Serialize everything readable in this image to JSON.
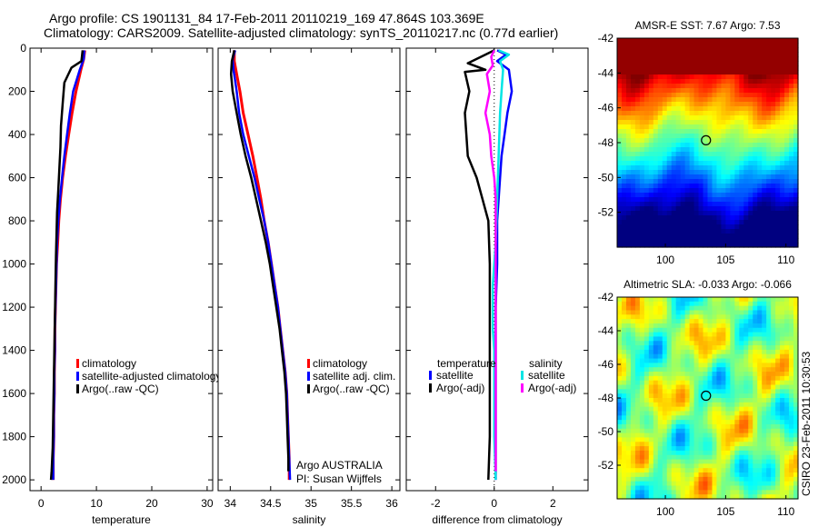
{
  "header": {
    "line1": "Argo profile: CS 1901131_84 17-Feb-2011 20110219_169 47.864S 103.369E",
    "line2": "Climatology: CARS2009. Satellite-adjusted climatology: synTS_20110217.nc (0.77d earlier)"
  },
  "colors": {
    "climatology": "#ff0000",
    "satellite": "#0000ff",
    "argo": "#000000",
    "sat_salinity": "#00e5e5",
    "argo_salinity_adj": "#ff00ff",
    "map_dot": "#000000"
  },
  "side_label": "CSIRO 23-Feb-2011 10:30:53",
  "chart_data": [
    {
      "type": "line",
      "id": "temperature",
      "xlabel": "temperature",
      "xlim": [
        -2,
        31
      ],
      "ylim": [
        0,
        2050
      ],
      "xticks": [
        "0",
        "10",
        "20",
        "30"
      ],
      "xtick_values": [
        0,
        10,
        20,
        30
      ],
      "yticks": [
        "0",
        "200",
        "400",
        "600",
        "800",
        "1000",
        "1200",
        "1400",
        "1600",
        "1800",
        "2000"
      ],
      "ytick_values": [
        0,
        200,
        400,
        600,
        800,
        1000,
        1200,
        1400,
        1600,
        1800,
        2000
      ],
      "y_reversed": true,
      "legend": [
        "climatology",
        "satellite-adjusted climatology",
        "Argo(..raw -QC)"
      ],
      "series": [
        {
          "name": "climatology",
          "color": "red",
          "width": 3,
          "points": [
            [
              7.9,
              10
            ],
            [
              7.7,
              50
            ],
            [
              7.2,
              100
            ],
            [
              6.3,
              200
            ],
            [
              5.6,
              300
            ],
            [
              5.0,
              400
            ],
            [
              4.4,
              500
            ],
            [
              3.9,
              600
            ],
            [
              3.5,
              700
            ],
            [
              3.2,
              800
            ],
            [
              3.0,
              900
            ],
            [
              2.8,
              1000
            ],
            [
              2.7,
              1100
            ],
            [
              2.6,
              1200
            ],
            [
              2.5,
              1300
            ],
            [
              2.5,
              1400
            ],
            [
              2.4,
              1500
            ],
            [
              2.4,
              1600
            ],
            [
              2.3,
              1700
            ],
            [
              2.3,
              1800
            ],
            [
              2.2,
              1900
            ],
            [
              2.2,
              2000
            ]
          ]
        },
        {
          "name": "satellite",
          "color": "blue",
          "width": 2.5,
          "points": [
            [
              7.8,
              10
            ],
            [
              7.7,
              50
            ],
            [
              7.0,
              100
            ],
            [
              5.8,
              200
            ],
            [
              5.2,
              300
            ],
            [
              4.7,
              400
            ],
            [
              4.2,
              500
            ],
            [
              3.8,
              600
            ],
            [
              3.4,
              700
            ],
            [
              3.1,
              800
            ],
            [
              2.9,
              900
            ],
            [
              2.8,
              1000
            ],
            [
              2.7,
              1100
            ],
            [
              2.6,
              1200
            ],
            [
              2.5,
              1300
            ],
            [
              2.5,
              1400
            ],
            [
              2.4,
              1500
            ],
            [
              2.4,
              1600
            ],
            [
              2.3,
              1700
            ],
            [
              2.3,
              1800
            ],
            [
              2.2,
              1900
            ],
            [
              2.2,
              2000
            ]
          ]
        },
        {
          "name": "argo",
          "color": "black",
          "width": 2.5,
          "points": [
            [
              7.5,
              10
            ],
            [
              7.3,
              60
            ],
            [
              5.5,
              90
            ],
            [
              4.2,
              160
            ],
            [
              3.9,
              260
            ],
            [
              3.6,
              360
            ],
            [
              3.5,
              460
            ],
            [
              3.3,
              560
            ],
            [
              3.1,
              660
            ],
            [
              2.9,
              760
            ],
            [
              2.8,
              860
            ],
            [
              2.7,
              960
            ],
            [
              2.6,
              1100
            ],
            [
              2.5,
              1250
            ],
            [
              2.4,
              1400
            ],
            [
              2.3,
              1550
            ],
            [
              2.2,
              1700
            ],
            [
              2.1,
              1850
            ],
            [
              1.9,
              1960
            ],
            [
              1.8,
              2000
            ]
          ]
        }
      ]
    },
    {
      "type": "line",
      "id": "salinity",
      "xlabel": "salinity",
      "xlim": [
        33.85,
        36.1
      ],
      "ylim": [
        0,
        2050
      ],
      "xticks": [
        "34",
        "34.5",
        "35",
        "35.5",
        "36"
      ],
      "xtick_values": [
        34,
        34.5,
        35,
        35.5,
        36
      ],
      "y_reversed": true,
      "legend": [
        "climatology",
        "satellite adj. clim.",
        "Argo(..raw -QC)"
      ],
      "annotation": [
        "Argo AUSTRALIA",
        "PI: Susan Wijffels"
      ],
      "series": [
        {
          "name": "climatology",
          "color": "red",
          "width": 3,
          "points": [
            [
              34.05,
              10
            ],
            [
              34.05,
              60
            ],
            [
              34.08,
              120
            ],
            [
              34.12,
              200
            ],
            [
              34.16,
              300
            ],
            [
              34.22,
              400
            ],
            [
              34.28,
              500
            ],
            [
              34.33,
              600
            ],
            [
              34.38,
              700
            ],
            [
              34.42,
              800
            ],
            [
              34.47,
              900
            ],
            [
              34.51,
              1000
            ],
            [
              34.55,
              1100
            ],
            [
              34.59,
              1200
            ],
            [
              34.62,
              1300
            ],
            [
              34.65,
              1400
            ],
            [
              34.68,
              1500
            ],
            [
              34.7,
              1600
            ],
            [
              34.71,
              1700
            ],
            [
              34.72,
              1800
            ],
            [
              34.73,
              1900
            ],
            [
              34.73,
              2000
            ]
          ]
        },
        {
          "name": "satellite",
          "color": "blue",
          "width": 2.5,
          "points": [
            [
              34.06,
              10
            ],
            [
              34.03,
              50
            ],
            [
              34.04,
              100
            ],
            [
              34.06,
              150
            ],
            [
              34.08,
              200
            ],
            [
              34.11,
              300
            ],
            [
              34.16,
              400
            ],
            [
              34.23,
              500
            ],
            [
              34.3,
              600
            ],
            [
              34.36,
              700
            ],
            [
              34.42,
              800
            ],
            [
              34.47,
              900
            ],
            [
              34.51,
              1000
            ],
            [
              34.55,
              1100
            ],
            [
              34.59,
              1200
            ],
            [
              34.62,
              1300
            ],
            [
              34.65,
              1400
            ],
            [
              34.68,
              1500
            ],
            [
              34.7,
              1600
            ],
            [
              34.71,
              1700
            ],
            [
              34.72,
              1800
            ],
            [
              34.73,
              1900
            ],
            [
              34.74,
              2000
            ]
          ]
        },
        {
          "name": "argo",
          "color": "black",
          "width": 2.5,
          "points": [
            [
              34.05,
              10
            ],
            [
              34.02,
              60
            ],
            [
              34.01,
              120
            ],
            [
              34.03,
              200
            ],
            [
              34.08,
              300
            ],
            [
              34.13,
              400
            ],
            [
              34.19,
              500
            ],
            [
              34.26,
              600
            ],
            [
              34.32,
              700
            ],
            [
              34.38,
              800
            ],
            [
              34.44,
              900
            ],
            [
              34.49,
              1000
            ],
            [
              34.53,
              1100
            ],
            [
              34.57,
              1200
            ],
            [
              34.61,
              1300
            ],
            [
              34.64,
              1400
            ],
            [
              34.67,
              1500
            ],
            [
              34.69,
              1600
            ],
            [
              34.7,
              1700
            ],
            [
              34.71,
              1800
            ],
            [
              34.72,
              1900
            ],
            [
              34.72,
              1960
            ]
          ]
        }
      ]
    },
    {
      "type": "line",
      "id": "difference",
      "xlabel": "difference from climatology",
      "xlim": [
        -3.0,
        3.2
      ],
      "ylim": [
        0,
        2050
      ],
      "xticks": [
        "-2",
        "0",
        "2"
      ],
      "xtick_values": [
        -2,
        0,
        2
      ],
      "y_reversed": true,
      "legend_headers": [
        "temperature",
        "salinity"
      ],
      "legend": [
        "satellite",
        "Argo(-adj)",
        "satellite",
        "Argo(-adj)"
      ],
      "series": [
        {
          "name": "temperature satellite",
          "color": "blue",
          "width": 2.5,
          "points": [
            [
              0.1,
              10
            ],
            [
              0.4,
              30
            ],
            [
              0.1,
              60
            ],
            [
              0.5,
              100
            ],
            [
              0.55,
              150
            ],
            [
              0.6,
              200
            ],
            [
              0.45,
              300
            ],
            [
              0.35,
              400
            ],
            [
              0.25,
              500
            ],
            [
              0.2,
              600
            ],
            [
              0.15,
              700
            ],
            [
              0.1,
              800
            ],
            [
              0.1,
              1000
            ],
            [
              0.05,
              1200
            ],
            [
              0.05,
              1400
            ],
            [
              0.05,
              1600
            ],
            [
              0.05,
              1800
            ],
            [
              0.05,
              2000
            ]
          ]
        },
        {
          "name": "temperature argo",
          "color": "black",
          "width": 2.5,
          "points": [
            [
              0,
              10
            ],
            [
              -0.9,
              70
            ],
            [
              -0.3,
              100
            ],
            [
              -1.0,
              110
            ],
            [
              -0.85,
              200
            ],
            [
              -1.0,
              300
            ],
            [
              -0.95,
              400
            ],
            [
              -0.9,
              500
            ],
            [
              -0.6,
              600
            ],
            [
              -0.4,
              700
            ],
            [
              -0.2,
              800
            ],
            [
              -0.15,
              1000
            ],
            [
              -0.15,
              1200
            ],
            [
              -0.15,
              1400
            ],
            [
              -0.15,
              1600
            ],
            [
              -0.15,
              1800
            ],
            [
              -0.2,
              2000
            ]
          ]
        },
        {
          "name": "salinity satellite",
          "color": "cyan",
          "width": 2.5,
          "points": [
            [
              0.15,
              10
            ],
            [
              0.5,
              30
            ],
            [
              0.2,
              60
            ],
            [
              0.3,
              100
            ],
            [
              0.25,
              200
            ],
            [
              0.2,
              300
            ],
            [
              0.15,
              500
            ],
            [
              0.1,
              700
            ],
            [
              0.05,
              900
            ],
            [
              -0.05,
              1100
            ],
            [
              -0.05,
              1200
            ],
            [
              -0.05,
              1300
            ],
            [
              0.0,
              1400
            ],
            [
              0.0,
              1600
            ],
            [
              0.0,
              1800
            ],
            [
              0.05,
              2000
            ]
          ]
        },
        {
          "name": "salinity argo",
          "color": "magenta",
          "width": 2.5,
          "points": [
            [
              0,
              10
            ],
            [
              -0.1,
              40
            ],
            [
              -0.05,
              80
            ],
            [
              -0.25,
              120
            ],
            [
              -0.15,
              200
            ],
            [
              -0.3,
              300
            ],
            [
              -0.15,
              400
            ],
            [
              -0.1,
              500
            ],
            [
              0.0,
              600
            ],
            [
              0.05,
              700
            ],
            [
              0.05,
              800
            ],
            [
              0.05,
              1000
            ],
            [
              0.05,
              1200
            ],
            [
              0.05,
              1400
            ],
            [
              0.05,
              1600
            ],
            [
              0.05,
              1800
            ],
            [
              0.05,
              1960
            ]
          ]
        }
      ]
    },
    {
      "type": "heatmap",
      "id": "sst_map",
      "title": "AMSR-E SST: 7.67 Argo: 7.53",
      "xticks": [
        "100",
        "105",
        "110"
      ],
      "xtick_values": [
        100,
        105,
        110
      ],
      "yticks": [
        "-42",
        "-44",
        "-46",
        "-48",
        "-50",
        "-52"
      ],
      "ytick_values": [
        -42,
        -44,
        -46,
        -48,
        -50,
        -52
      ],
      "xlim": [
        96,
        111
      ],
      "ylim": [
        -54,
        -42
      ],
      "marker": {
        "lon": 103.369,
        "lat": -47.864
      }
    },
    {
      "type": "heatmap",
      "id": "sla_map",
      "title": "Altimetric SLA: -0.033 Argo: -0.066",
      "xticks": [
        "100",
        "105",
        "110"
      ],
      "xtick_values": [
        100,
        105,
        110
      ],
      "yticks": [
        "-42",
        "-44",
        "-46",
        "-48",
        "-50",
        "-52"
      ],
      "ytick_values": [
        -42,
        -44,
        -46,
        -48,
        -50,
        -52
      ],
      "xlim": [
        96,
        111
      ],
      "ylim": [
        -54,
        -42
      ],
      "marker": {
        "lon": 103.369,
        "lat": -47.864
      }
    }
  ]
}
